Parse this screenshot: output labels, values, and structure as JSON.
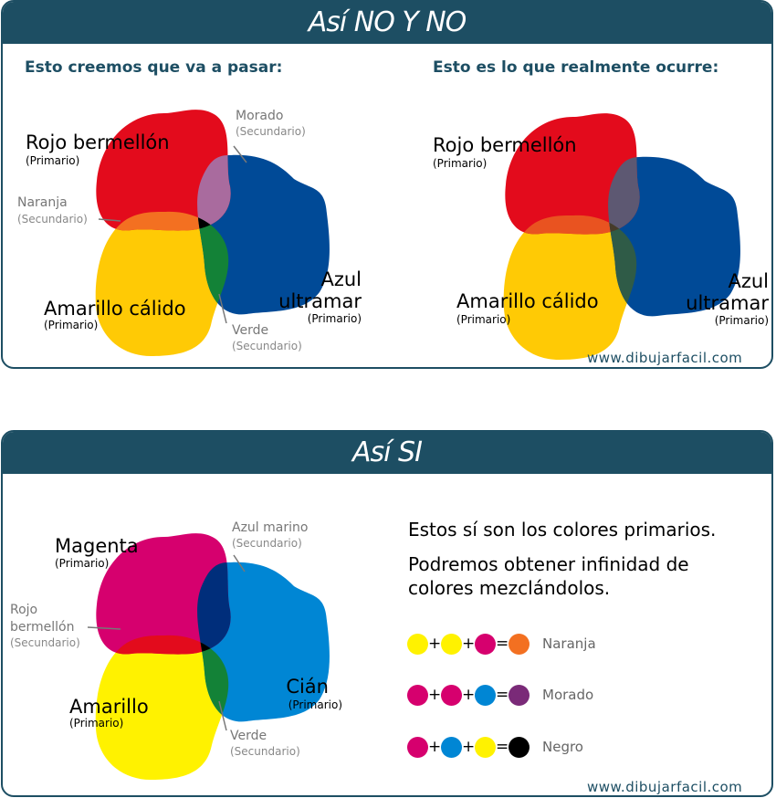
{
  "top": {
    "title": "Así NO Y NO",
    "left_subtitle": "Esto creemos que va a pasar:",
    "right_subtitle": "Esto es lo que realmente ocurre:",
    "left": {
      "red_name": "Rojo bermellón",
      "red_tag": "(Primario)",
      "yellow_name": "Amarillo cálido",
      "yellow_tag": "(Primario)",
      "blue_name_1": "Azul",
      "blue_name_2": "ultramar",
      "blue_tag": "(Primario)",
      "purple_name": "Morado",
      "purple_tag": "(Secundario)",
      "orange_name": "Naranja",
      "orange_tag": "(Secundario)",
      "green_name": "Verde",
      "green_tag": "(Secundario)"
    },
    "right": {
      "red_name": "Rojo bermellón",
      "red_tag": "(Primario)",
      "yellow_name": "Amarillo cálido",
      "yellow_tag": "(Primario)",
      "blue_name_1": "Azul",
      "blue_name_2": "ultramar",
      "blue_tag": "(Primario)"
    },
    "website": "www.dibujarfacil.com"
  },
  "bottom": {
    "title": "Así SI",
    "magenta_name": "Magenta",
    "magenta_tag": "(Primario)",
    "yellow_name": "Amarillo",
    "yellow_tag": "(Primario)",
    "cyan_name": "Cián",
    "cyan_tag": "(Primario)",
    "navy_name": "Azul marino",
    "navy_tag": "(Secundario)",
    "red_name_1": "Rojo",
    "red_name_2": "bermellón",
    "red_tag": "(Secundario)",
    "green_name": "Verde",
    "green_tag": "(Secundario)",
    "info_line1": "Estos sí son los colores primarios.",
    "info_line2": "Podremos obtener infinidad de",
    "info_line3": "colores mezclándolos.",
    "equations": [
      {
        "inputs": [
          "#fff200",
          "#fff200",
          "#d6006e"
        ],
        "result_color": "#f37021",
        "result": "Naranja"
      },
      {
        "inputs": [
          "#d6006e",
          "#d6006e",
          "#0086d4"
        ],
        "result_color": "#7a2a78",
        "result": "Morado"
      },
      {
        "inputs": [
          "#d6006e",
          "#0086d4",
          "#fff200"
        ],
        "result_color": "#000000",
        "result": "Negro"
      }
    ],
    "website": "www.dibujarfacil.com"
  },
  "colors": {
    "banner": "#1d4e63",
    "vermilion": "#e30b1c",
    "warm_yellow": "#ffca05",
    "ultramarine": "#004a97",
    "magenta": "#d6006e",
    "yellow": "#fff200",
    "cyan": "#0086d4"
  }
}
